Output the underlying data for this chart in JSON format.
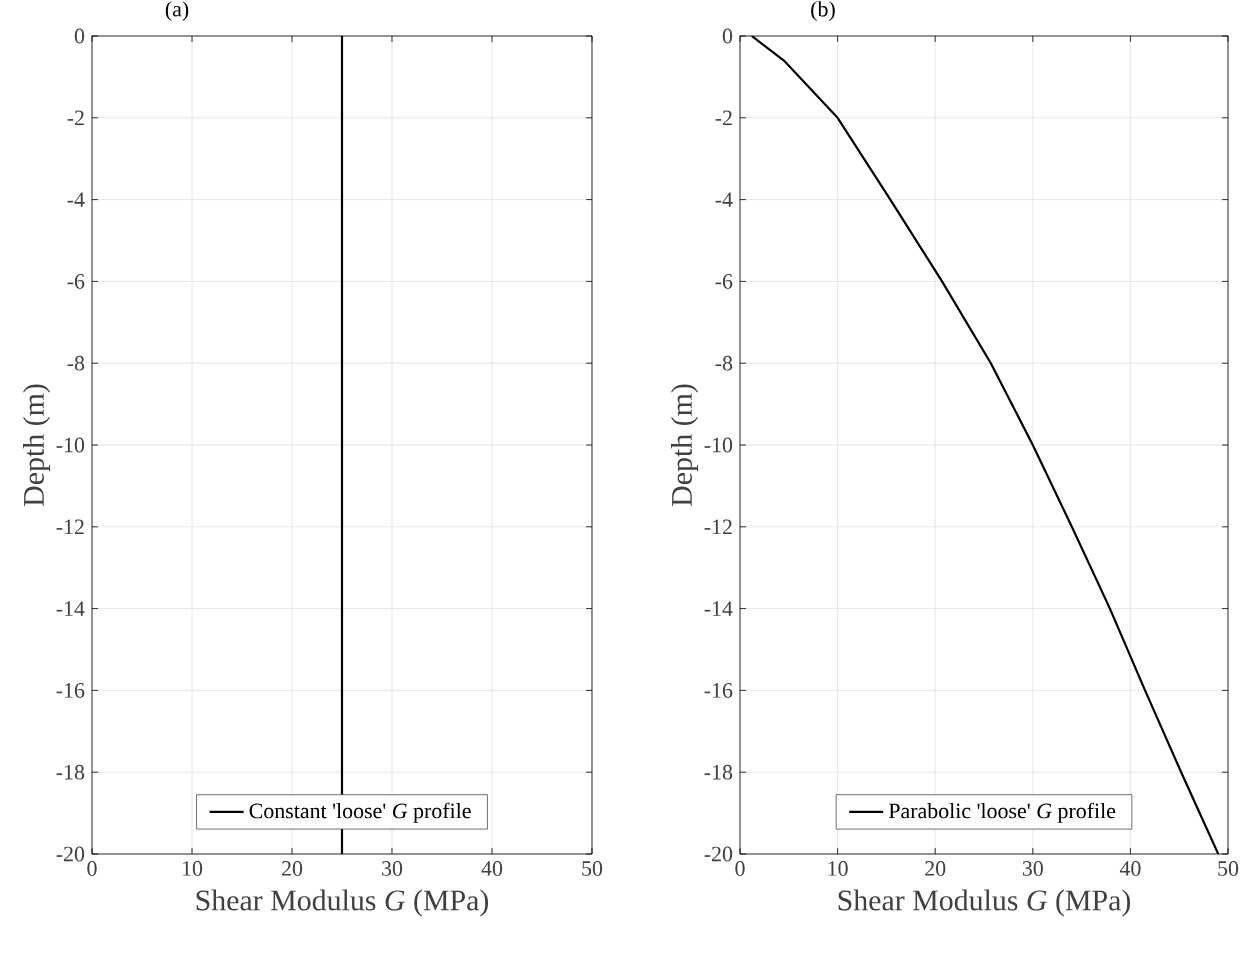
{
  "chart_data": [
    {
      "type": "line",
      "title": "(a)",
      "xlabel": "Shear Modulus *G* (MPa)",
      "ylabel": "Depth (m)",
      "series": [
        {
          "name": "Constant 'loose' *G* profile",
          "color": "#000000",
          "x": [
            25,
            25
          ],
          "values": [
            0,
            -20
          ]
        }
      ],
      "xlim": [
        0,
        50
      ],
      "xticks": [
        0,
        10,
        20,
        30,
        40,
        50
      ],
      "ylim": [
        -20,
        0
      ],
      "yticks": [
        -20,
        -18,
        -16,
        -14,
        -12,
        -10,
        -8,
        -6,
        -4,
        -2,
        0
      ],
      "grid": true,
      "legend": "bottom",
      "line_style": "solid",
      "marker": "none"
    },
    {
      "type": "line",
      "title": "(b)",
      "xlabel": "Shear Modulus *G* (MPa)",
      "ylabel": "Depth (m)",
      "series": [
        {
          "name": "Parabolic 'loose' *G* profile",
          "color": "#000000",
          "x": [
            1.2,
            4.5,
            10,
            15.4,
            20.7,
            25.7,
            30,
            34,
            37.9,
            41.5,
            45.2,
            49
          ],
          "values": [
            0,
            -0.6,
            -2,
            -4,
            -6,
            -8,
            -10,
            -12,
            -14,
            -16,
            -18,
            -20
          ]
        }
      ],
      "xlim": [
        0,
        50
      ],
      "xticks": [
        0,
        10,
        20,
        30,
        40,
        {
          "value": 50,
          "label": "50"
        }
      ],
      "ylim": [
        -20,
        0
      ],
      "yticks": [
        -20,
        -18,
        -16,
        -14,
        -12,
        -10,
        -8,
        -6,
        -4,
        -2,
        0
      ],
      "grid": true,
      "legend": "bottom",
      "line_style": "solid",
      "marker": "none"
    }
  ]
}
